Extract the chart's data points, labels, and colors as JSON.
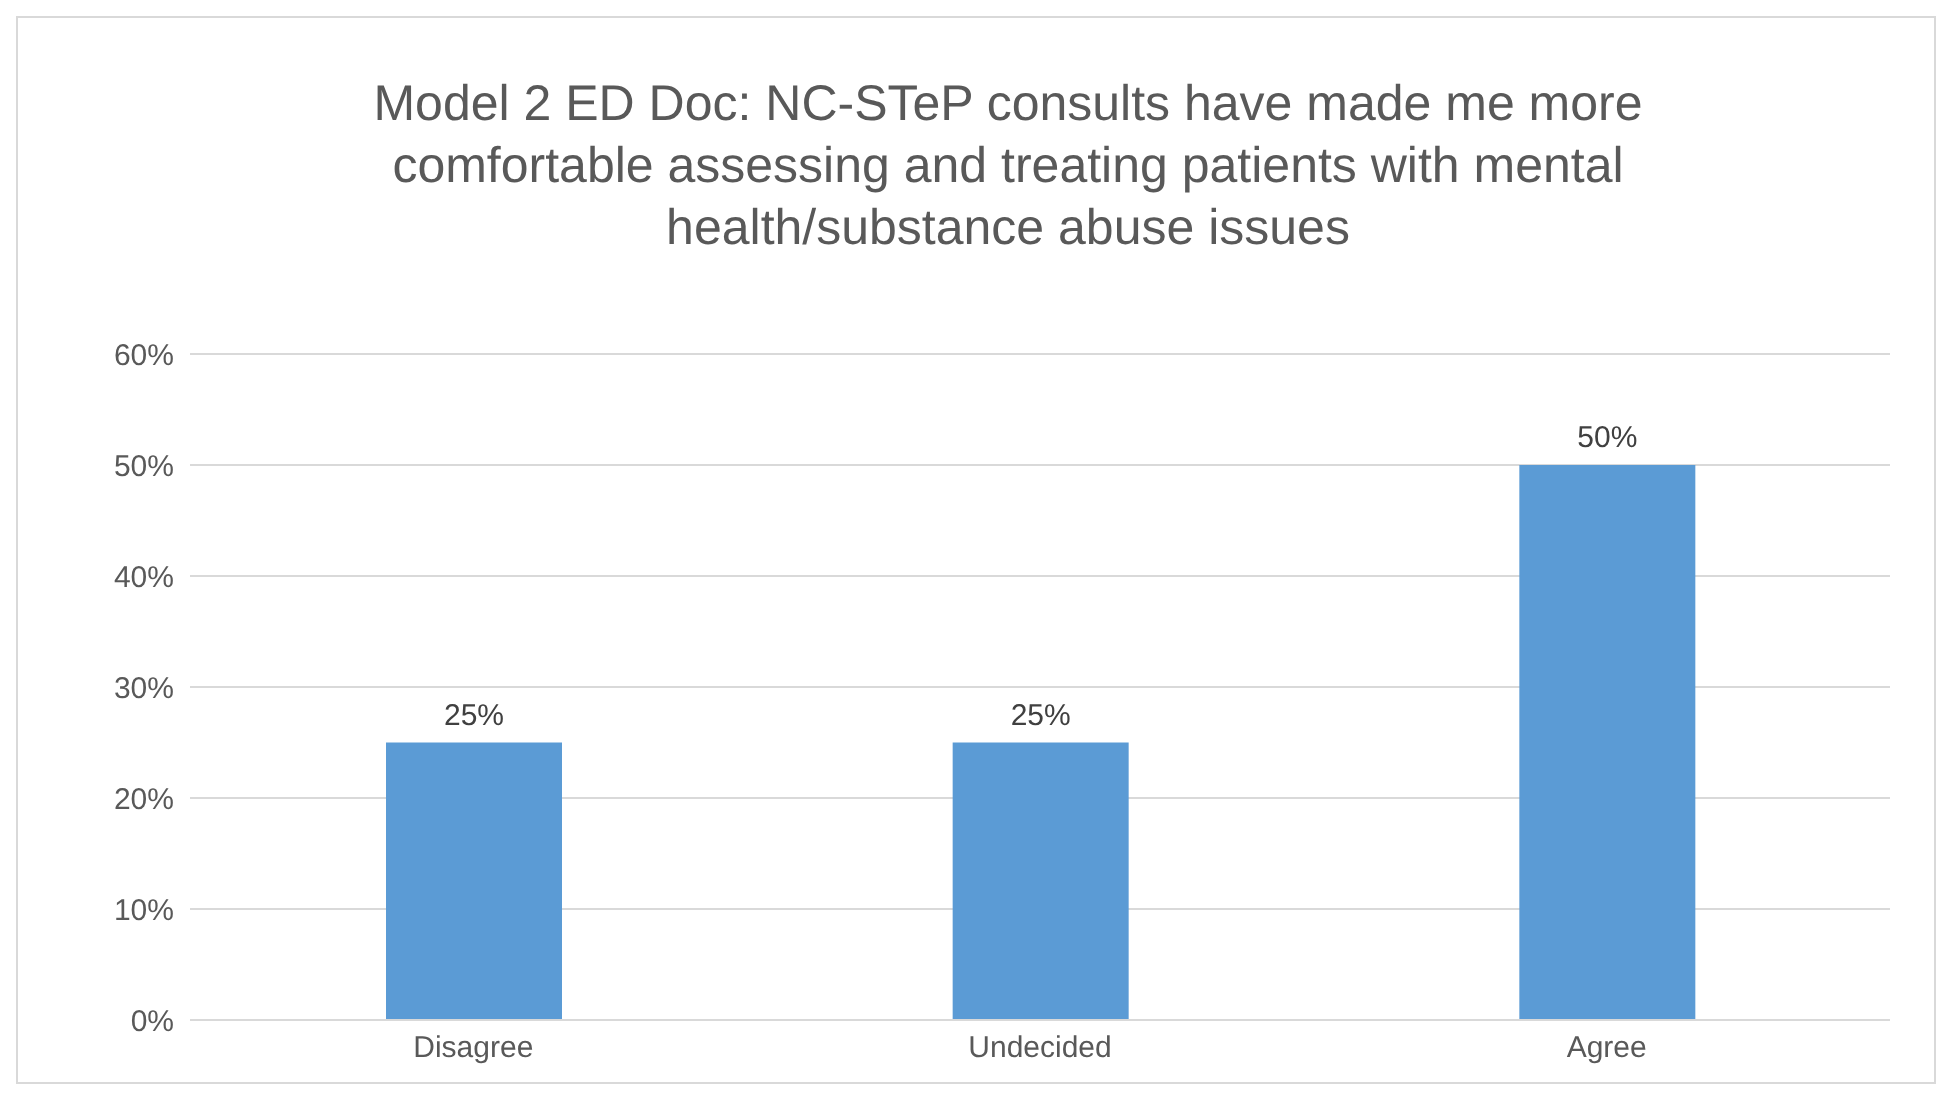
{
  "chart_data": {
    "type": "bar",
    "title": "Model 2 ED Doc:  NC-STeP consults have made me more comfortable assessing and treating patients with mental health/substance abuse issues",
    "categories": [
      "Disagree",
      "Undecided",
      "Agree"
    ],
    "values": [
      25,
      25,
      50
    ],
    "value_labels": [
      "25%",
      "25%",
      "50%"
    ],
    "color": "#5b9bd5",
    "ylim": [
      0,
      60
    ],
    "yticks": [
      {
        "value": 0,
        "label": "0%"
      },
      {
        "value": 10,
        "label": "10%"
      },
      {
        "value": 20,
        "label": "20%"
      },
      {
        "value": 30,
        "label": "30%"
      },
      {
        "value": 40,
        "label": "40%"
      },
      {
        "value": 50,
        "label": "50%"
      },
      {
        "value": 60,
        "label": "60%"
      }
    ],
    "grid": "y"
  }
}
